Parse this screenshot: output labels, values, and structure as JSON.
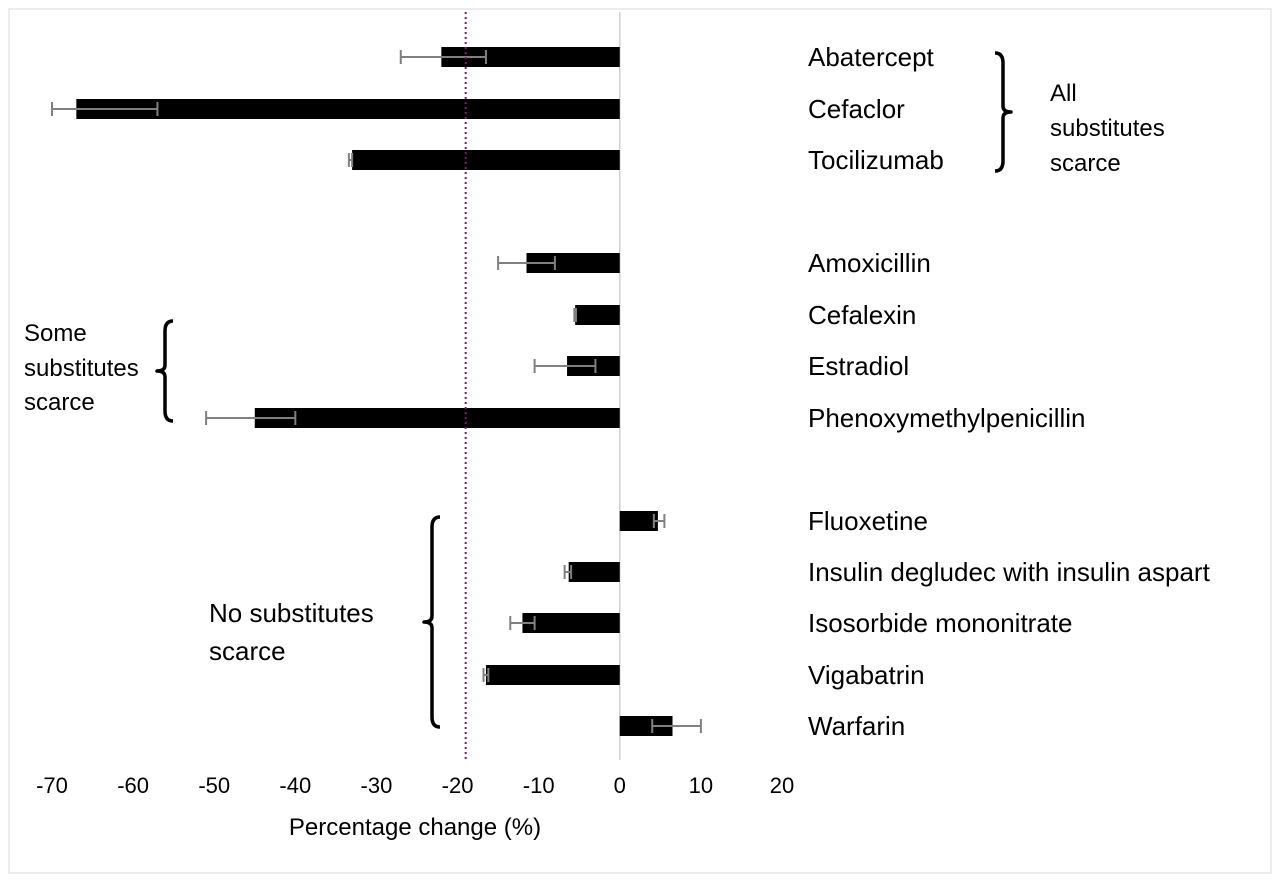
{
  "chart_data": {
    "type": "bar",
    "orientation": "horizontal",
    "xlabel": "Percentage change (%)",
    "xlim": [
      -70,
      20
    ],
    "xticks": [
      -70,
      -60,
      -50,
      -40,
      -30,
      -20,
      -10,
      0,
      10,
      20
    ],
    "xtick_labels": [
      "-70",
      "-60",
      "-50",
      "-40",
      "-30",
      "-20",
      "-10",
      "0",
      "10",
      "20"
    ],
    "reference_line": {
      "x": -19,
      "style": "dotted",
      "color": "#7a1f6b"
    },
    "grid": false,
    "categories": [
      "Abatercept",
      "Cefaclor",
      "Tocilizumab",
      "Amoxicillin",
      "Cefalexin",
      "Estradiol",
      "Phenoxymethylpenicillin",
      "Fluoxetine",
      "Insulin degludec with insulin aspart",
      "Isosorbide mononitrate",
      "Vigabatrin",
      "Warfarin"
    ],
    "values": [
      -22,
      -67,
      -33,
      -11.5,
      -5.5,
      -6.5,
      -45,
      4.7,
      -6.3,
      -12,
      -16.5,
      6.5
    ],
    "error_low": [
      -27,
      -70,
      -33.4,
      -15,
      -5.6,
      -10.5,
      -51,
      4.2,
      -6.8,
      -13.5,
      -16.8,
      4
    ],
    "error_high": [
      -16.5,
      -57,
      -33,
      -8,
      -5.4,
      -3,
      -40,
      5.5,
      -6,
      -10.5,
      -16.2,
      10
    ],
    "groups": [
      {
        "label_lines": [
          "All",
          "substitutes",
          "scarce"
        ],
        "members": [
          0,
          1,
          2
        ]
      },
      {
        "label_lines": [
          "Some",
          "substitutes",
          "scarce"
        ],
        "members": [
          3,
          4,
          5,
          6
        ]
      },
      {
        "label_lines": [
          "No substitutes",
          "scarce"
        ],
        "members": [
          7,
          8,
          9,
          10,
          11
        ]
      }
    ],
    "colors": {
      "bar": "#000000",
      "error_bar": "#808080",
      "zero_line": "#d0d0d0"
    }
  }
}
